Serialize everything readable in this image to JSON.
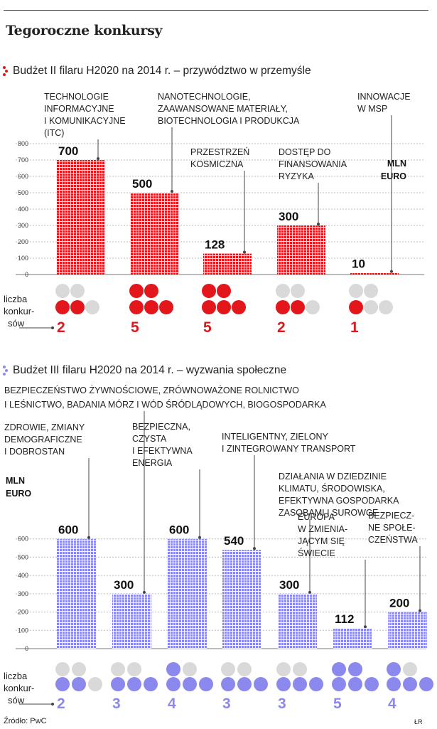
{
  "title": "Tegoroczne konkursy",
  "source": "Źródło: PwC",
  "author": "ŁR",
  "chart_data": [
    {
      "type": "bar",
      "title": "Budżet II filaru H2020 na 2014 r. – przywództwo w przemyśle",
      "unit_label": [
        "MLN",
        "EURO"
      ],
      "ylim": [
        0,
        800
      ],
      "yticks": [
        "0",
        "100",
        "200",
        "300",
        "400",
        "500",
        "600",
        "700",
        "800"
      ],
      "accent": "#e3161b",
      "dot_empty": "#d9d9d9",
      "row_label": [
        "liczba",
        "konkur-",
        "sów"
      ],
      "categories": [
        [
          "TECHNOLOGIE",
          "INFORMACYJNE",
          "I KOMUNIKACYJNE",
          "(ITC)"
        ],
        [
          "NANOTECHNOLOGIE,",
          "ZAAWANSOWANE MATERIAŁY,",
          "BIOTECHNOLOGIA I PRODUKCJA"
        ],
        [
          "PRZESTRZEŃ",
          "KOSMICZNA"
        ],
        [
          "DOSTĘP DO",
          "FINANSOWANIA",
          "RYZYKA"
        ],
        [
          "INNOWACJE",
          "W MSP"
        ]
      ],
      "values": [
        700,
        500,
        128,
        300,
        10
      ],
      "value_labels": [
        "700",
        "500",
        "128",
        "300",
        "10"
      ],
      "contests": [
        2,
        5,
        5,
        2,
        1
      ],
      "contest_labels": [
        "2",
        "5",
        "5",
        "2",
        "1"
      ]
    },
    {
      "type": "bar",
      "title": "Budżet III filaru H2020 na 2014 r. – wyzwania społeczne",
      "unit_label": [
        "MLN",
        "EURO"
      ],
      "ylim": [
        0,
        700
      ],
      "yticks": [
        "0",
        "100",
        "200",
        "300",
        "400",
        "500",
        "600"
      ],
      "accent": "#8b89ee",
      "dot_empty": "#d9d9d9",
      "row_label": [
        "liczba",
        "konkur-",
        "sów"
      ],
      "categories": [
        [
          "ZDROWIE, ZMIANY",
          "DEMOGRAFICZNE",
          "I DOBROSTAN"
        ],
        [
          "BEZPIECZEŃSTWO ŻYWNOŚCIOWE, ZRÓWNOWAŻONE ROLNICTWO",
          "I LEŚNICTWO, BADANIA MÓRZ I WÓD ŚRÓDLĄDOWYCH, BIOGOSPODARKA"
        ],
        [
          "BEZPIECZNA,",
          "CZYSTA",
          "I EFEKTYWNA",
          "ENERGIA"
        ],
        [
          "INTELIGENTNY, ZIELONY",
          "I ZINTEGROWANY TRANSPORT"
        ],
        [
          "DZIAŁANIA W DZIEDZINIE",
          "KLIMATU, ŚRODOWISKA,",
          "EFEKTYWNA GOSPODARKA",
          "ZASOBAMI I SUROWCE"
        ],
        [
          "EUROPA",
          "W ZMIENIA-",
          "JĄCYM SIĘ",
          "ŚWIECIE"
        ],
        [
          "BEZPIECZ-",
          "NE SPOŁE-",
          "CZEŃSTWA"
        ]
      ],
      "values": [
        600,
        300,
        600,
        540,
        300,
        112,
        200
      ],
      "value_labels": [
        "600",
        "300",
        "600",
        "540",
        "300",
        "112",
        "200"
      ],
      "contests": [
        2,
        3,
        4,
        3,
        3,
        5,
        4
      ],
      "contest_labels": [
        "2",
        "3",
        "4",
        "3",
        "3",
        "5",
        "4"
      ]
    }
  ]
}
